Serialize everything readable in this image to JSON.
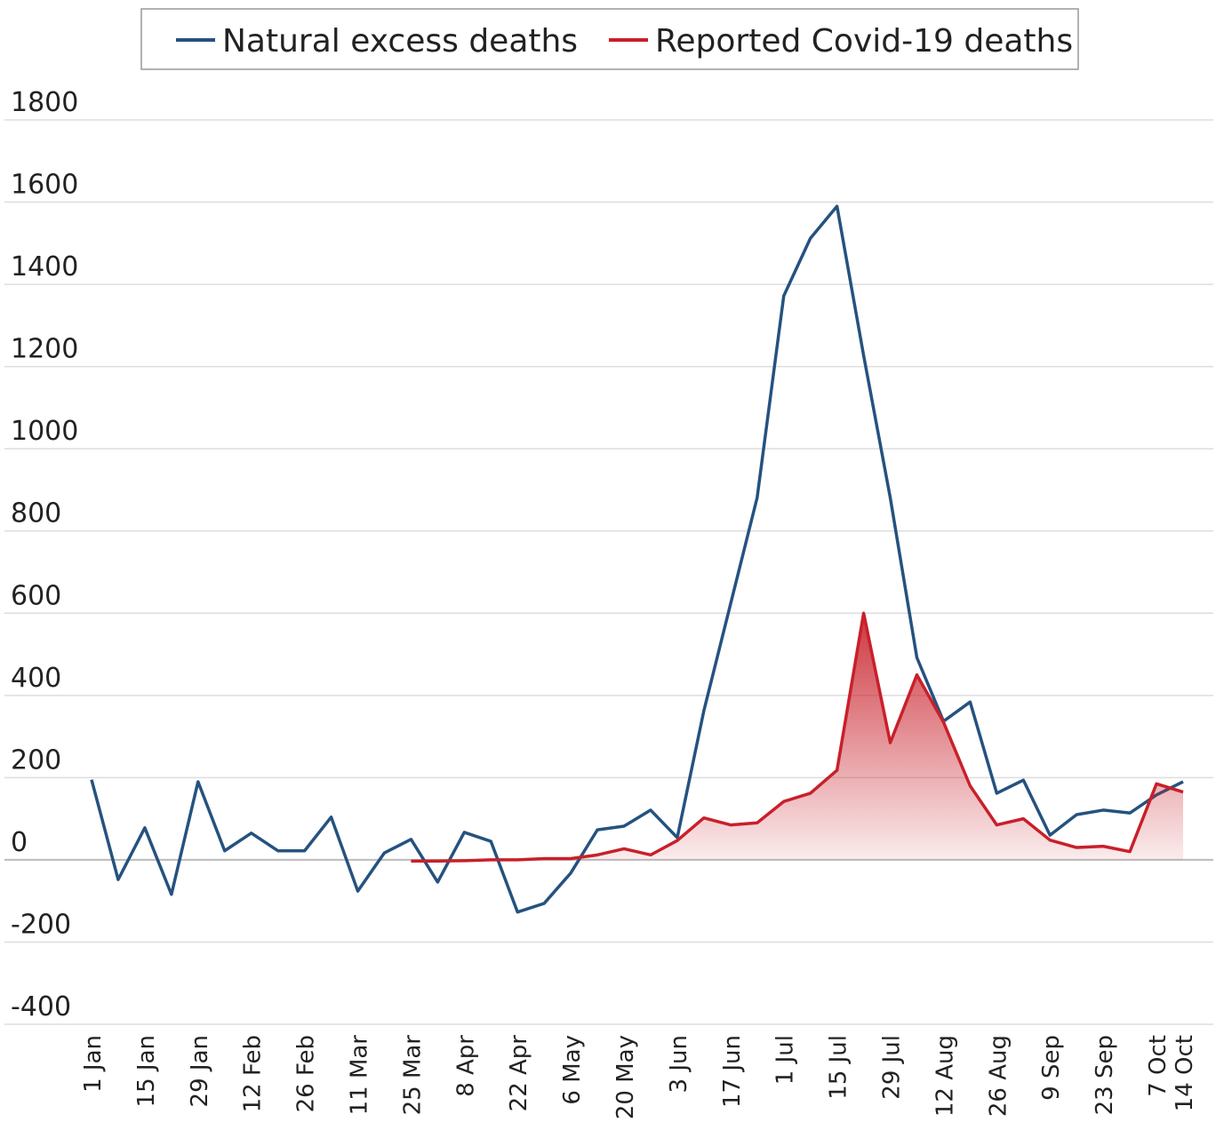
{
  "chart_data": {
    "type": "line",
    "categories": [
      "1 Jan",
      null,
      "15 Jan",
      null,
      "29 Jan",
      null,
      "12 Feb",
      null,
      "26 Feb",
      null,
      "11 Mar",
      null,
      "25 Mar",
      null,
      "8 Apr",
      null,
      "22 Apr",
      null,
      "6 May",
      null,
      "20 May",
      null,
      "3 Jun",
      null,
      "17 Jun",
      null,
      "1 Jul",
      null,
      "15 Jul",
      null,
      "29 Jul",
      null,
      "12 Aug",
      null,
      "26 Aug",
      null,
      "9 Sep",
      null,
      "23 Sep",
      null,
      "7 Oct",
      "14 Oct"
    ],
    "series": [
      {
        "name": "Natural excess deaths",
        "color": "#25527f",
        "values": [
          195,
          -48,
          78,
          -84,
          190,
          22,
          65,
          22,
          22,
          104,
          -76,
          17,
          50,
          -54,
          67,
          45,
          -127,
          -106,
          -32,
          73,
          82,
          121,
          54,
          363,
          622,
          881,
          1372,
          1512,
          1590,
          1227,
          881,
          492,
          337,
          384,
          162,
          194,
          60,
          110,
          121,
          114,
          158,
          190
        ]
      },
      {
        "name": "Reported Covid-19 deaths",
        "color": "#c8202a",
        "fill": true,
        "values": [
          null,
          null,
          null,
          null,
          null,
          null,
          null,
          null,
          null,
          null,
          null,
          null,
          -3,
          -3,
          -2,
          0,
          0,
          3,
          3,
          12,
          27,
          12,
          47,
          102,
          85,
          90,
          142,
          162,
          218,
          600,
          285,
          450,
          335,
          180,
          85,
          100,
          48,
          30,
          33,
          20,
          185,
          165
        ]
      }
    ],
    "ylim": [
      -400,
      1800
    ],
    "yticks": [
      -400,
      -200,
      0,
      200,
      400,
      600,
      800,
      1000,
      1200,
      1400,
      1600,
      1800
    ],
    "grid": true,
    "legend": "top"
  }
}
